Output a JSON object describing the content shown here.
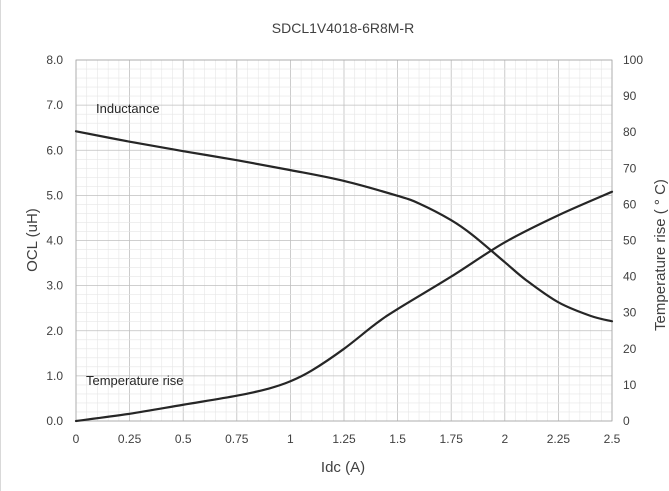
{
  "chart_data": {
    "type": "line",
    "title": "SDCL1V4018-6R8M-R",
    "xlabel": "Idc (A)",
    "ylabel": "OCL (uH)",
    "y2label": "Temperature rise ( ° C)",
    "xlim": [
      0,
      2.5
    ],
    "ylim": [
      0,
      8
    ],
    "y2lim": [
      0,
      100
    ],
    "x_ticks": [
      "0",
      "0.25",
      "0.5",
      "0.75",
      "1",
      "1.25",
      "1.5",
      "1.75",
      "2",
      "2.25",
      "2.5"
    ],
    "y_ticks": [
      "0.0",
      "1.0",
      "2.0",
      "3.0",
      "4.0",
      "5.0",
      "6.0",
      "7.0",
      "8.0"
    ],
    "y2_ticks": [
      "0",
      "10",
      "20",
      "30",
      "40",
      "50",
      "60",
      "70",
      "80",
      "90",
      "100"
    ],
    "grid": true,
    "line_color": "#262626",
    "series": [
      {
        "name": "Inductance",
        "axis": "left",
        "x": [
          0,
          0.25,
          0.5,
          0.75,
          1.0,
          1.25,
          1.5,
          1.6,
          1.75,
          1.85,
          2.0,
          2.1,
          2.25,
          2.4,
          2.5
        ],
        "y": [
          6.42,
          6.19,
          5.98,
          5.78,
          5.56,
          5.32,
          4.99,
          4.82,
          4.45,
          4.12,
          3.52,
          3.12,
          2.63,
          2.33,
          2.21
        ]
      },
      {
        "name": "Temperature rise",
        "axis": "right",
        "x": [
          0,
          0.25,
          0.5,
          0.75,
          0.9,
          1.0,
          1.1,
          1.25,
          1.4,
          1.5,
          1.75,
          2.0,
          2.25,
          2.5
        ],
        "y": [
          0,
          2,
          4.5,
          7,
          9,
          11,
          14,
          20,
          27,
          31,
          40,
          49.5,
          57,
          63.5
        ]
      }
    ],
    "annotations": [
      "Inductance",
      "Temperature rise"
    ]
  }
}
